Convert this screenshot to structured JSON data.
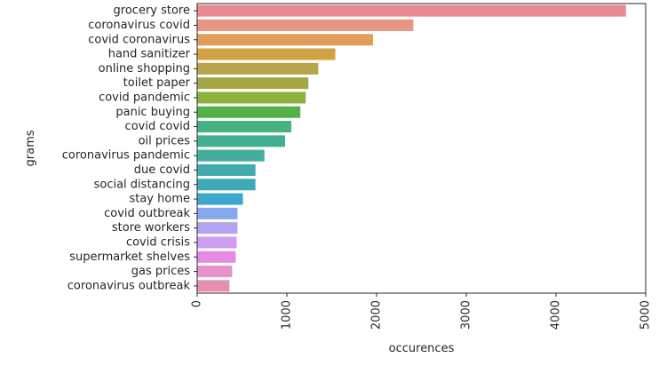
{
  "chart_data": {
    "type": "bar",
    "orientation": "horizontal",
    "xlabel": "occurences",
    "ylabel": "grams",
    "xlim": [
      0,
      5000
    ],
    "xticks": [
      "0",
      "1000",
      "2000",
      "3000",
      "4000",
      "5000"
    ],
    "grid": false,
    "categories": [
      "grocery store",
      "coronavirus covid",
      "covid coronavirus",
      "hand sanitizer",
      "online shopping",
      "toilet paper",
      "covid pandemic",
      "panic buying",
      "covid covid",
      "oil prices",
      "coronavirus pandemic",
      "due covid",
      "social distancing",
      "stay home",
      "covid outbreak",
      "store workers",
      "covid crisis",
      "supermarket shelves",
      "gas prices",
      "coronavirus outbreak"
    ],
    "values": [
      4780,
      2410,
      1960,
      1540,
      1350,
      1240,
      1210,
      1150,
      1050,
      980,
      750,
      650,
      650,
      510,
      450,
      450,
      440,
      430,
      390,
      360
    ],
    "colors": [
      "#e98a92",
      "#e99584",
      "#e19d59",
      "#d1a144",
      "#b8a44a",
      "#a3a845",
      "#8db13d",
      "#52b248",
      "#46b27f",
      "#44b092",
      "#43ad9e",
      "#41abab",
      "#40a9b8",
      "#3ca6cd",
      "#87a8ee",
      "#b1a3ef",
      "#cd9ef2",
      "#e58ae2",
      "#e693c8",
      "#e58fb2"
    ]
  }
}
